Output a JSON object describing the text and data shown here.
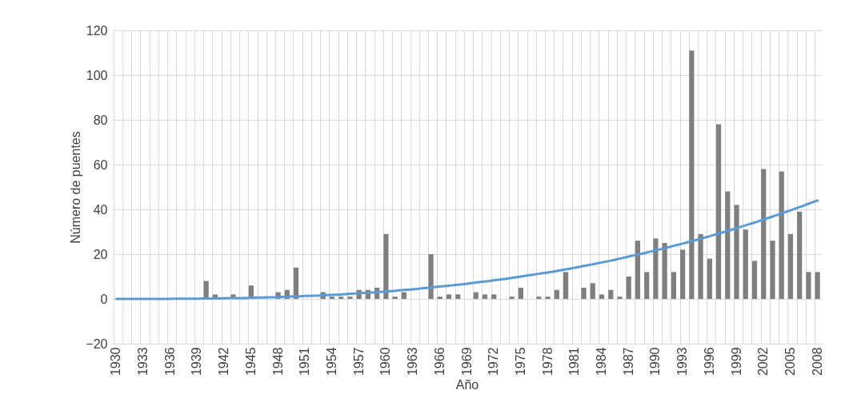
{
  "chart_data": {
    "type": "bar",
    "xlabel": "Año",
    "ylabel": "Número de puentes",
    "categories": [
      "1930",
      null,
      null,
      "1933",
      null,
      null,
      "1936",
      null,
      null,
      "1939",
      null,
      null,
      "1942",
      null,
      null,
      "1945",
      null,
      null,
      "1948",
      null,
      null,
      "1951",
      null,
      null,
      "1954",
      null,
      null,
      "1957",
      null,
      null,
      "1960",
      null,
      null,
      "1963",
      null,
      null,
      "1966",
      null,
      null,
      "1969",
      null,
      null,
      "1972",
      null,
      null,
      "1975",
      null,
      null,
      "1978",
      null,
      null,
      "1981",
      null,
      null,
      "1984",
      null,
      null,
      "1987",
      null,
      null,
      "1990",
      null,
      null,
      "1993",
      null,
      null,
      "1996",
      null,
      null,
      "1999",
      null,
      null,
      "2002",
      null,
      null,
      "2005",
      null,
      null,
      "2008"
    ],
    "series": [
      {
        "color": "#7f7f7f",
        "values": [
          0,
          0,
          0,
          0,
          0,
          0,
          0,
          0,
          0,
          0,
          8,
          2,
          0,
          2,
          0,
          6,
          0,
          0,
          3,
          4,
          14,
          0,
          0,
          3,
          1,
          1,
          1,
          4,
          4,
          5,
          29,
          1,
          3,
          0,
          0,
          20,
          1,
          2,
          2,
          0,
          3,
          2,
          2,
          0,
          1,
          5,
          0,
          1,
          1,
          4,
          12,
          0,
          5,
          7,
          2,
          4,
          1,
          10,
          26,
          12,
          27,
          25,
          12,
          22,
          111,
          29,
          18,
          78,
          48,
          42,
          31,
          17,
          58,
          26,
          57,
          29,
          39,
          12,
          12
        ]
      },
      {
        "type": "line",
        "color": "#5b9bd5",
        "values": [
          0,
          0,
          0,
          0,
          0,
          0,
          0,
          0.1,
          0.1,
          0.1,
          0.2,
          0.2,
          0.3,
          0.4,
          0.4,
          0.5,
          0.6,
          0.7,
          0.8,
          1,
          1.1,
          1.3,
          1.4,
          1.6,
          1.8,
          2,
          2.3,
          2.5,
          2.8,
          3,
          3.3,
          3.6,
          4,
          4.3,
          4.7,
          5.1,
          5.5,
          5.9,
          6.3,
          6.8,
          7.3,
          7.8,
          8.3,
          8.8,
          9.4,
          10,
          10.6,
          11.2,
          11.8,
          12.5,
          13.2,
          13.9,
          14.7,
          15.5,
          16.3,
          17.1,
          18,
          18.9,
          19.8,
          20.7,
          21.7,
          22.6,
          23.7,
          24.7,
          25.8,
          26.9,
          28,
          29.2,
          30.4,
          31.6,
          32.9,
          34.1,
          35.5,
          36.8,
          38.2,
          39.6,
          41,
          42.5,
          44
        ]
      }
    ],
    "ylim": [
      -20,
      120
    ],
    "yticks": [
      -20,
      0,
      20,
      40,
      60,
      80,
      100,
      120
    ],
    "grid": true
  }
}
